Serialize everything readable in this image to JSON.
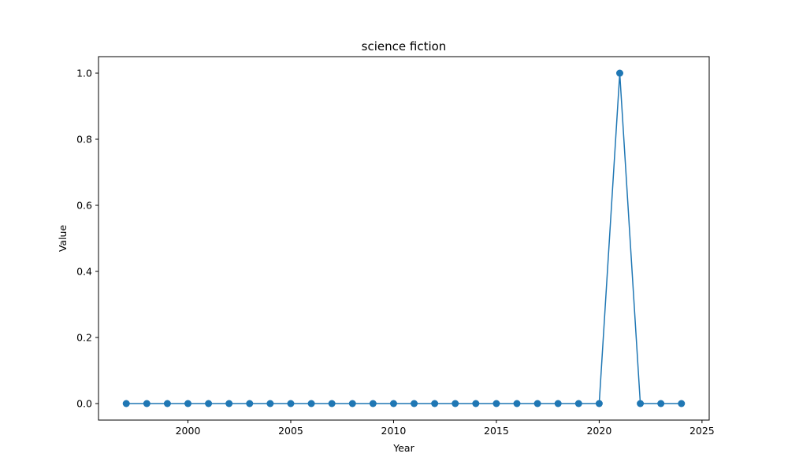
{
  "chart_data": {
    "type": "line",
    "title": "science fiction",
    "xlabel": "Year",
    "ylabel": "Value",
    "xlim": [
      1995.65,
      2025.35
    ],
    "ylim": [
      -0.05,
      1.05
    ],
    "xticks": [
      2000,
      2005,
      2010,
      2015,
      2020,
      2025
    ],
    "xtick_labels": [
      "2000",
      "2005",
      "2010",
      "2015",
      "2020",
      "2025"
    ],
    "yticks": [
      0.0,
      0.2,
      0.4,
      0.6,
      0.8,
      1.0
    ],
    "ytick_labels": [
      "0.0",
      "0.2",
      "0.4",
      "0.6",
      "0.8",
      "1.0"
    ],
    "grid": false,
    "legend": "none",
    "series": [
      {
        "color": "#1f77b4",
        "marker": "circle",
        "x": [
          1997,
          1998,
          1999,
          2000,
          2001,
          2002,
          2003,
          2004,
          2005,
          2006,
          2007,
          2008,
          2009,
          2010,
          2011,
          2012,
          2013,
          2014,
          2015,
          2016,
          2017,
          2018,
          2019,
          2020,
          2021,
          2022,
          2023,
          2024
        ],
        "y": [
          0,
          0,
          0,
          0,
          0,
          0,
          0,
          0,
          0,
          0,
          0,
          0,
          0,
          0,
          0,
          0,
          0,
          0,
          0,
          0,
          0,
          0,
          0,
          0,
          1,
          0,
          0,
          0
        ]
      }
    ]
  }
}
